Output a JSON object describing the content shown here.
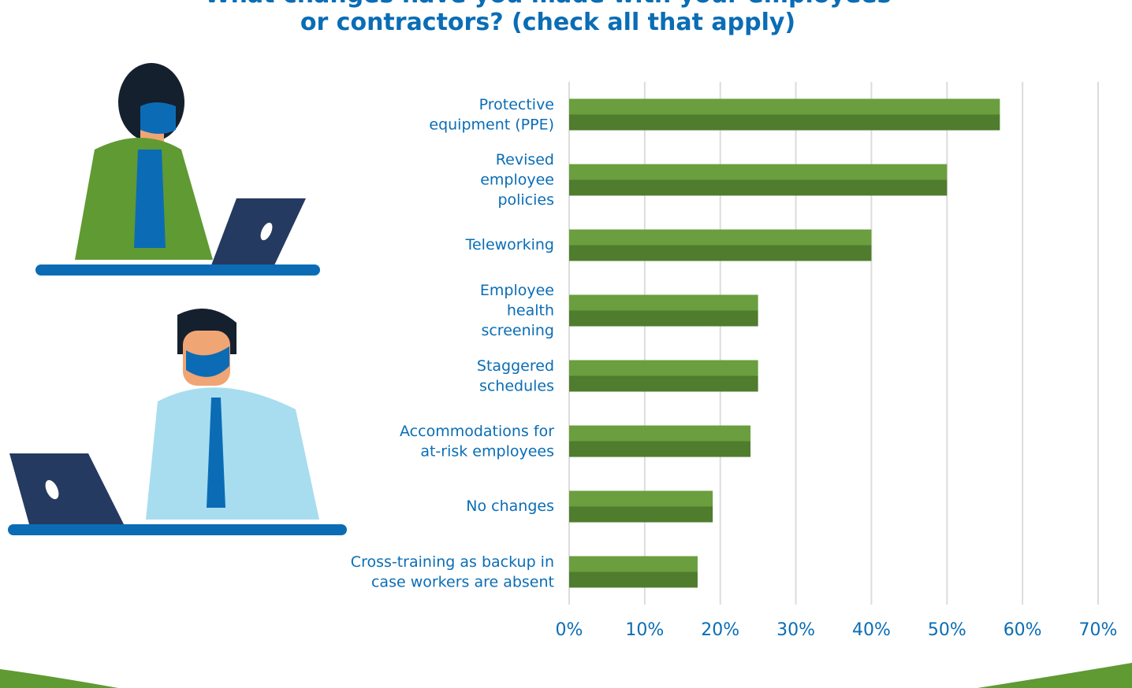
{
  "chart_data": {
    "type": "bar",
    "orientation": "horizontal",
    "title": "What changes have you made with your employees\nor contractors? (check all that apply)",
    "categories": [
      "Protective\nequipment (PPE)",
      "Revised\nemployee\npolicies",
      "Teleworking",
      "Employee\nhealth\nscreening",
      "Staggered\nschedules",
      "Accommodations for\nat-risk employees",
      "No changes",
      "Cross-training as backup in\ncase workers are absent"
    ],
    "values": [
      57,
      50,
      40,
      25,
      25,
      24,
      19,
      17
    ],
    "colors": [
      "#6a9e3e",
      "#4f7c2d"
    ],
    "xlim": [
      0,
      70
    ],
    "xticks": [
      {
        "value": 0,
        "label": "0%"
      },
      {
        "value": 10,
        "label": "10%"
      },
      {
        "value": 20,
        "label": "20%"
      },
      {
        "value": 30,
        "label": "30%"
      },
      {
        "value": 40,
        "label": "40%"
      },
      {
        "value": 50,
        "label": "50%"
      },
      {
        "value": 60,
        "label": "60%"
      },
      {
        "value": 70,
        "label": "70%"
      }
    ],
    "grid": true
  }
}
